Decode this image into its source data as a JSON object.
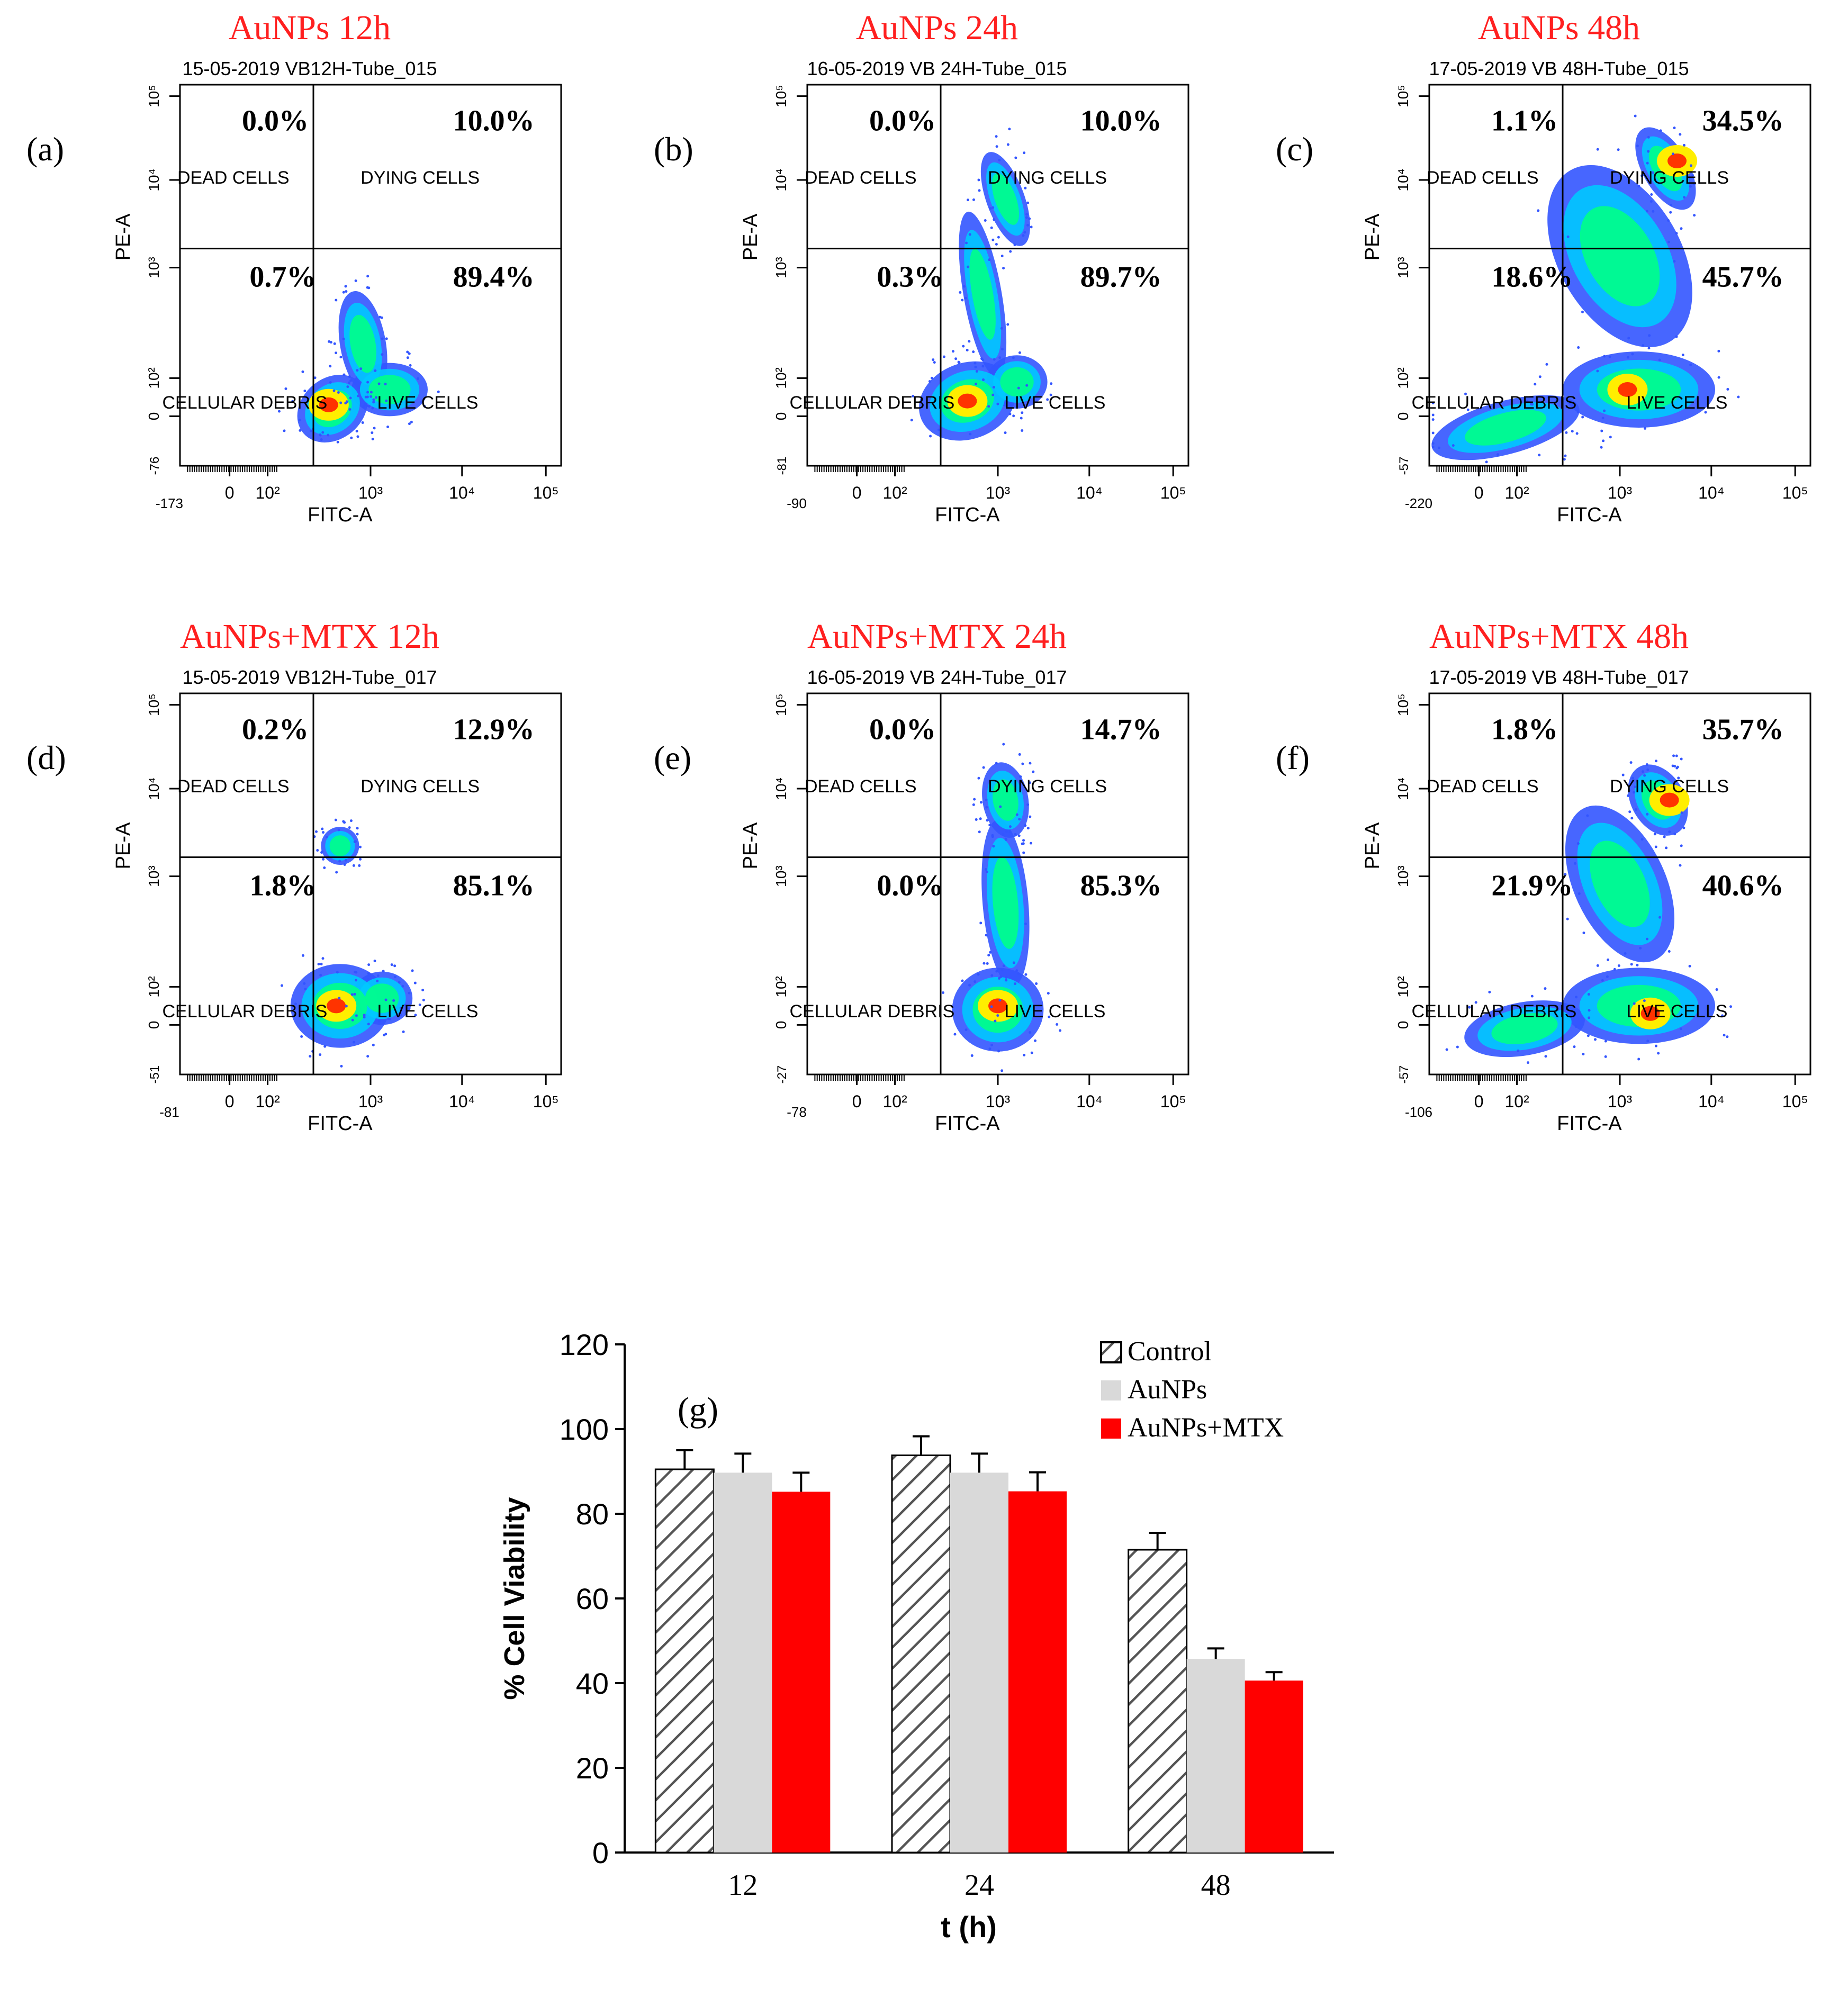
{
  "flow_panels": [
    {
      "letter": "(a)",
      "title": "AuNPs 12h",
      "tube": "15-05-2019 VB12H-Tube_015",
      "quadrants": {
        "q1": "0.0%",
        "q2": "10.0%",
        "q3": "0.7%",
        "q4": "89.4%"
      },
      "x_axis_min_label": "-173",
      "y_axis_min_label": "-76"
    },
    {
      "letter": "(b)",
      "title": "AuNPs 24h",
      "tube": "16-05-2019 VB 24H-Tube_015",
      "quadrants": {
        "q1": "0.0%",
        "q2": "10.0%",
        "q3": "0.3%",
        "q4": "89.7%"
      },
      "x_axis_min_label": "-90",
      "y_axis_min_label": "-81"
    },
    {
      "letter": "(c)",
      "title": "AuNPs 48h",
      "tube": "17-05-2019 VB 48H-Tube_015",
      "quadrants": {
        "q1": "1.1%",
        "q2": "34.5%",
        "q3": "18.6%",
        "q4": "45.7%"
      },
      "x_axis_min_label": "-220",
      "y_axis_min_label": "-57"
    },
    {
      "letter": "(d)",
      "title": "AuNPs+MTX 12h",
      "tube": "15-05-2019 VB12H-Tube_017",
      "quadrants": {
        "q1": "0.2%",
        "q2": "12.9%",
        "q3": "1.8%",
        "q4": "85.1%"
      },
      "x_axis_min_label": "-81",
      "y_axis_min_label": "-51"
    },
    {
      "letter": "(e)",
      "title": "AuNPs+MTX 24h",
      "tube": "16-05-2019 VB 24H-Tube_017",
      "quadrants": {
        "q1": "0.0%",
        "q2": "14.7%",
        "q3": "0.0%",
        "q4": "85.3%"
      },
      "x_axis_min_label": "-78",
      "y_axis_min_label": "-27"
    },
    {
      "letter": "(f)",
      "title": "AuNPs+MTX 48h",
      "tube": "17-05-2019 VB 48H-Tube_017",
      "quadrants": {
        "q1": "1.8%",
        "q2": "35.7%",
        "q3": "21.9%",
        "q4": "40.6%"
      },
      "x_axis_min_label": "-106",
      "y_axis_min_label": "-57"
    }
  ],
  "flow_labels": {
    "q1": "DEAD CELLS",
    "q2": "DYING CELLS",
    "q3": "CELLULAR DEBRIS",
    "q4": "LIVE CELLS",
    "x_axis": "FITC-A",
    "y_axis": "PE-A",
    "x_ticks": [
      "0",
      "10²",
      "10³",
      "10⁴",
      "10⁵"
    ],
    "y_ticks": [
      "0",
      "10²",
      "10³",
      "10⁴",
      "10⁵"
    ]
  },
  "colors": {
    "title_red": "#ff2020",
    "control": "#ffffff",
    "aunps": "#d9d9d9",
    "aunps_mtx": "#ff0000",
    "density_scale": [
      "#3355ff",
      "#00c8ff",
      "#00ff88",
      "#ffee00",
      "#ff3300"
    ]
  },
  "chart_data": [
    {
      "panel": "(a)",
      "type": "scatter",
      "xlabel": "FITC-A",
      "ylabel": "PE-A",
      "scale": "log",
      "quadrant_percent": {
        "dead_cells": 0.0,
        "dying_cells": 10.0,
        "cellular_debris": 0.7,
        "live_cells": 89.4
      }
    },
    {
      "panel": "(b)",
      "type": "scatter",
      "xlabel": "FITC-A",
      "ylabel": "PE-A",
      "scale": "log",
      "quadrant_percent": {
        "dead_cells": 0.0,
        "dying_cells": 10.0,
        "cellular_debris": 0.3,
        "live_cells": 89.7
      }
    },
    {
      "panel": "(c)",
      "type": "scatter",
      "xlabel": "FITC-A",
      "ylabel": "PE-A",
      "scale": "log",
      "quadrant_percent": {
        "dead_cells": 1.1,
        "dying_cells": 34.5,
        "cellular_debris": 18.6,
        "live_cells": 45.7
      }
    },
    {
      "panel": "(d)",
      "type": "scatter",
      "xlabel": "FITC-A",
      "ylabel": "PE-A",
      "scale": "log",
      "quadrant_percent": {
        "dead_cells": 0.2,
        "dying_cells": 12.9,
        "cellular_debris": 1.8,
        "live_cells": 85.1
      }
    },
    {
      "panel": "(e)",
      "type": "scatter",
      "xlabel": "FITC-A",
      "ylabel": "PE-A",
      "scale": "log",
      "quadrant_percent": {
        "dead_cells": 0.0,
        "dying_cells": 14.7,
        "cellular_debris": 0.0,
        "live_cells": 85.3
      }
    },
    {
      "panel": "(f)",
      "type": "scatter",
      "xlabel": "FITC-A",
      "ylabel": "PE-A",
      "scale": "log",
      "quadrant_percent": {
        "dead_cells": 1.8,
        "dying_cells": 35.7,
        "cellular_debris": 21.9,
        "live_cells": 40.6
      }
    },
    {
      "panel": "(g)",
      "type": "bar",
      "categories": [
        "12",
        "24",
        "48"
      ],
      "series": [
        {
          "name": "Control",
          "values": [
            90.5,
            93.8,
            71.5
          ],
          "errors": [
            4.5,
            4.5,
            4.0
          ]
        },
        {
          "name": "AuNPs",
          "values": [
            89.7,
            89.7,
            45.7
          ],
          "errors": [
            4.5,
            4.5,
            2.5
          ]
        },
        {
          "name": "AuNPs+MTX",
          "values": [
            85.2,
            85.3,
            40.6
          ],
          "errors": [
            4.5,
            4.5,
            2.0
          ]
        }
      ],
      "xlabel": "t (h)",
      "ylabel": "% Cell Viability",
      "ylim": [
        0,
        120
      ],
      "yticks": [
        0,
        20,
        40,
        60,
        80,
        100,
        120
      ],
      "legend_position": "top-right",
      "grid": false
    }
  ]
}
